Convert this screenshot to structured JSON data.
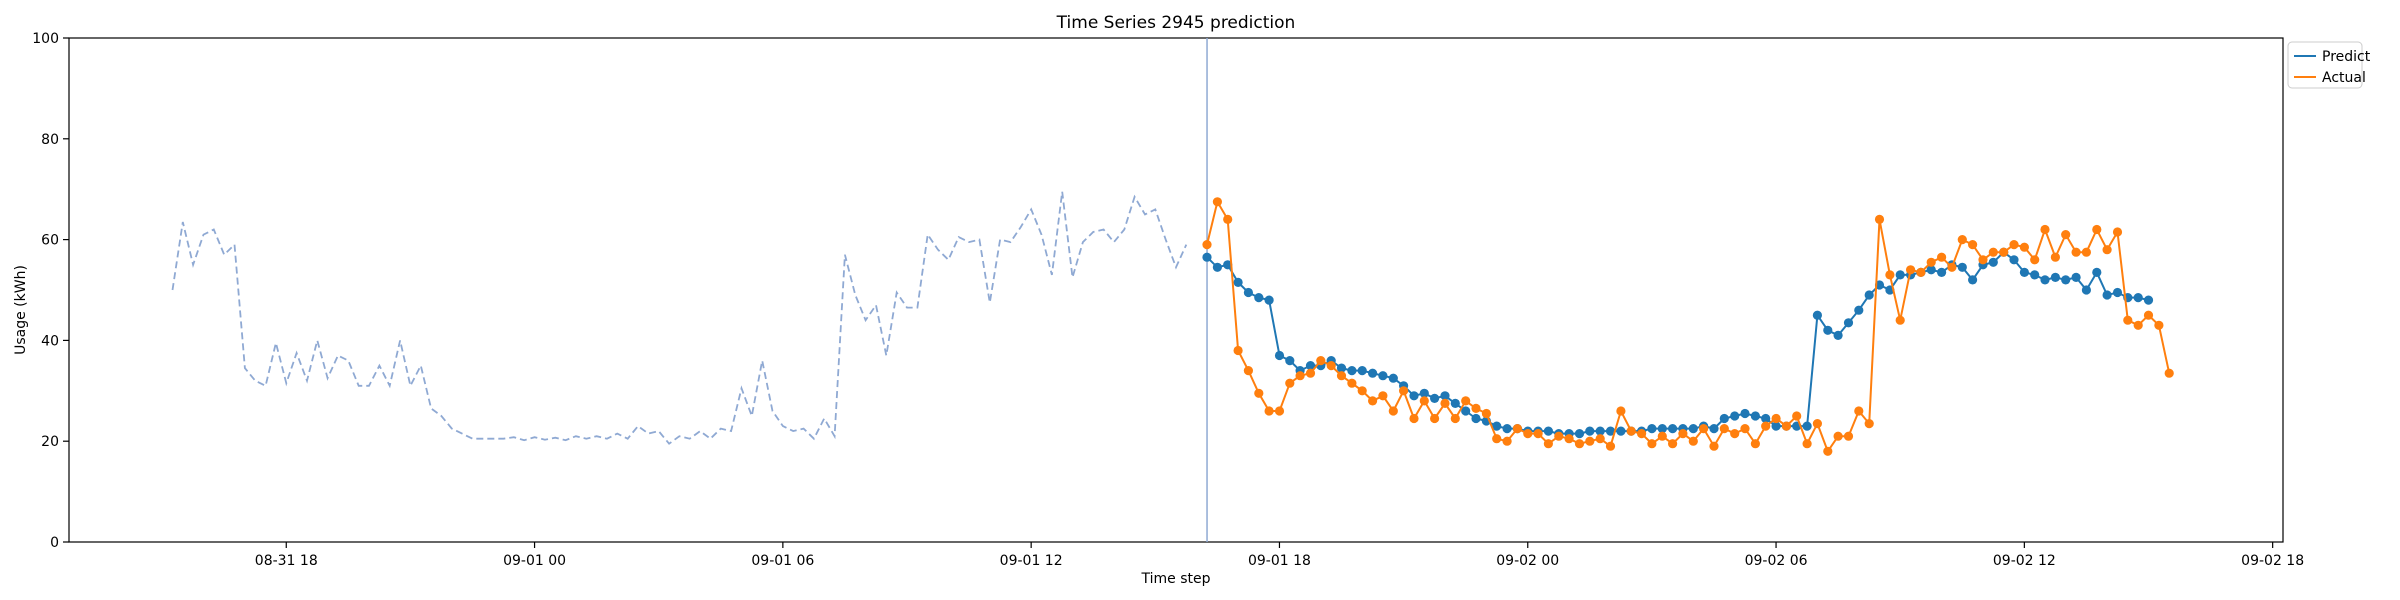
{
  "chart_data": {
    "type": "line",
    "title": "Time Series 2945 prediction",
    "xlabel": "Time step",
    "ylabel": "Usage (kWh)",
    "ylim": [
      0,
      100
    ],
    "yticks": [
      0,
      20,
      40,
      60,
      80,
      100
    ],
    "xlim": [
      "2024-08-31 12:45",
      "2024-09-02 18:15"
    ],
    "xticks": [
      {
        "t": "2024-08-31 18:00",
        "label": "08-31 18"
      },
      {
        "t": "2024-09-01 00:00",
        "label": "09-01 00"
      },
      {
        "t": "2024-09-01 06:00",
        "label": "09-01 06"
      },
      {
        "t": "2024-09-01 12:00",
        "label": "09-01 12"
      },
      {
        "t": "2024-09-01 18:00",
        "label": "09-01 18"
      },
      {
        "t": "2024-09-02 00:00",
        "label": "09-02 00"
      },
      {
        "t": "2024-09-02 06:00",
        "label": "09-02 06"
      },
      {
        "t": "2024-09-02 12:00",
        "label": "09-02 12"
      },
      {
        "t": "2024-09-02 18:00",
        "label": "09-02 18"
      }
    ],
    "time_step_minutes": 15,
    "forecast_start": "2024-09-01 16:15",
    "legend": {
      "position": "outside-top-right"
    },
    "grid": false,
    "history": {
      "start": "2024-08-31 15:15",
      "color": "#8fa9d3",
      "style": "dashed",
      "values": [
        50,
        63.5,
        55,
        61,
        62,
        57,
        59,
        34.5,
        32,
        31,
        39.5,
        31.5,
        37.5,
        32,
        40,
        32.5,
        37,
        36,
        31,
        31,
        35,
        31,
        40,
        31,
        35,
        26.5,
        25,
        22.5,
        21.5,
        20.5,
        20.5,
        20.5,
        20.5,
        20.8,
        20.2,
        20.8,
        20.3,
        20.7,
        20.2,
        21,
        20.5,
        21,
        20.5,
        21.5,
        20.5,
        23,
        21.5,
        22,
        19.5,
        21,
        20.5,
        22,
        20.5,
        22.5,
        22,
        30.5,
        25,
        36,
        26,
        23,
        22,
        22.5,
        20.5,
        24.5,
        21,
        57,
        49,
        44,
        47,
        37,
        49.5,
        46.5,
        46.5,
        61,
        58,
        56,
        60.5,
        59.5,
        60,
        47.5,
        60,
        59.5,
        62.5,
        66,
        61,
        53,
        69.5,
        52.5,
        59.5,
        61.5,
        62,
        59.5,
        62,
        68.5,
        65,
        66,
        60,
        54.5,
        59
      ]
    },
    "series": [
      {
        "name": "Predict",
        "color": "#1f77b4",
        "start": "2024-09-01 16:15",
        "values": [
          56.5,
          54.5,
          55,
          51.5,
          49.5,
          48.5,
          48,
          37,
          36,
          34,
          35,
          35,
          36,
          34.5,
          34,
          34,
          33.5,
          33,
          32.5,
          31,
          29,
          29.5,
          28.5,
          29,
          27.5,
          26,
          24.5,
          24,
          23,
          22.5,
          22.5,
          22,
          22,
          22,
          21.5,
          21.5,
          21.5,
          22,
          22,
          22,
          22,
          22,
          22,
          22.5,
          22.5,
          22.5,
          22.5,
          22.5,
          23,
          22.5,
          24.5,
          25,
          25.5,
          25,
          24.5,
          23,
          23,
          23,
          23,
          45,
          42,
          41,
          43.5,
          46,
          49,
          51,
          50,
          53,
          53,
          53.5,
          54,
          53.5,
          55,
          54.5,
          52,
          55,
          55.5,
          57.5,
          56,
          53.5,
          53,
          52,
          52.5,
          52,
          52.5,
          50,
          53.5,
          49,
          49.5,
          48.5,
          48.5,
          48
        ]
      },
      {
        "name": "Actual",
        "color": "#ff7f0e",
        "start": "2024-09-01 16:15",
        "values": [
          59,
          67.5,
          64,
          38,
          34,
          29.5,
          26,
          26,
          31.5,
          33,
          33.5,
          36,
          35,
          33,
          31.5,
          30,
          28,
          29,
          26,
          30,
          24.5,
          28,
          24.5,
          27.5,
          24.5,
          28,
          26.5,
          25.5,
          20.5,
          20,
          22.5,
          21.5,
          21.5,
          19.5,
          21,
          20.5,
          19.5,
          20,
          20.5,
          19,
          26,
          22,
          21.5,
          19.5,
          21,
          19.5,
          21.5,
          20,
          22.5,
          19,
          22.5,
          21.5,
          22.5,
          19.5,
          23,
          24.5,
          23,
          25,
          19.5,
          23.5,
          18,
          21,
          21,
          26,
          23.5,
          64,
          53,
          44,
          54,
          53.5,
          55.5,
          56.5,
          54.5,
          60,
          59,
          56,
          57.5,
          57.5,
          59,
          58.5,
          56,
          62,
          56.5,
          61,
          57.5,
          57.5,
          62,
          58,
          61.5,
          44,
          43,
          45,
          43,
          33.5
        ]
      }
    ]
  }
}
